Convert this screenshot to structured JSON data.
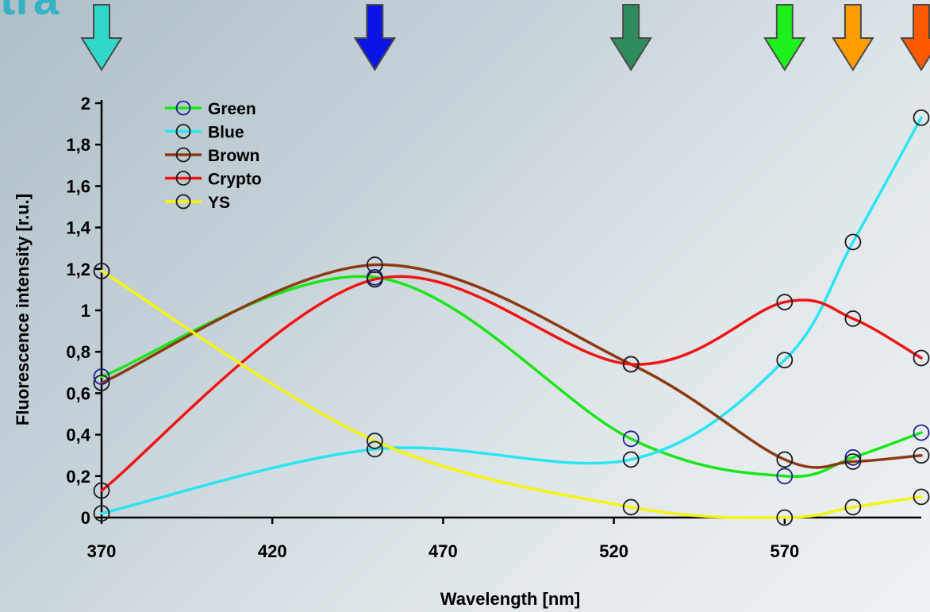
{
  "slide": {
    "title_fragment": "tra"
  },
  "arrows": [
    {
      "name": "cyan-arrow",
      "x": 370,
      "color": "#2fd8c8"
    },
    {
      "name": "blue-arrow",
      "x": 450,
      "color": "#0a14e6"
    },
    {
      "name": "darkgreen-arrow",
      "x": 525,
      "color": "#2e8c5c"
    },
    {
      "name": "green-arrow",
      "x": 570,
      "color": "#1ef01e"
    },
    {
      "name": "orange-arrow",
      "x": 590,
      "color": "#ff9c00"
    },
    {
      "name": "darkorange-arrow",
      "x": 610,
      "color": "#ff5a00"
    }
  ],
  "chart_data": {
    "type": "line",
    "title": "",
    "xlabel": "Wavelength [nm]",
    "ylabel": "Fluorescence intensity [r.u.]",
    "xlim": [
      370,
      610
    ],
    "ylim": [
      0,
      2
    ],
    "x_ticks": [
      370,
      420,
      470,
      520,
      570
    ],
    "x_tick_labels": [
      "370",
      "420",
      "470",
      "520",
      "570"
    ],
    "y_ticks": [
      0,
      0.2,
      0.4,
      0.6,
      0.8,
      1,
      1.2,
      1.4,
      1.6,
      1.8,
      2
    ],
    "y_tick_labels": [
      "0",
      "0,2",
      "0,4",
      "0,6",
      "0,8",
      "1",
      "1,2",
      "1,4",
      "1,6",
      "1,8",
      "2"
    ],
    "grid": false,
    "legend_position": "top-left",
    "x": [
      370,
      450,
      525,
      570,
      590,
      610
    ],
    "series": [
      {
        "name": "Green",
        "color": "#19e619",
        "marker_color": "#1f1f8f",
        "values": [
          0.68,
          1.16,
          0.38,
          0.2,
          0.29,
          0.41
        ]
      },
      {
        "name": "Blue",
        "color": "#29e6f2",
        "marker_color": "#1a1a1a",
        "values": [
          0.02,
          0.33,
          0.28,
          0.76,
          1.33,
          1.93
        ]
      },
      {
        "name": "Brown",
        "color": "#8c3a12",
        "marker_color": "#1a1a1a",
        "values": [
          0.65,
          1.22,
          0.74,
          0.28,
          0.27,
          0.3
        ]
      },
      {
        "name": "Crypto",
        "color": "#f01414",
        "marker_color": "#1a1a1a",
        "values": [
          0.13,
          1.15,
          0.74,
          1.04,
          0.96,
          0.77
        ]
      },
      {
        "name": "YS",
        "color": "#f5f50a",
        "marker_color": "#1a1a1a",
        "values": [
          1.19,
          0.37,
          0.05,
          0.0,
          0.05,
          0.1
        ]
      }
    ]
  }
}
